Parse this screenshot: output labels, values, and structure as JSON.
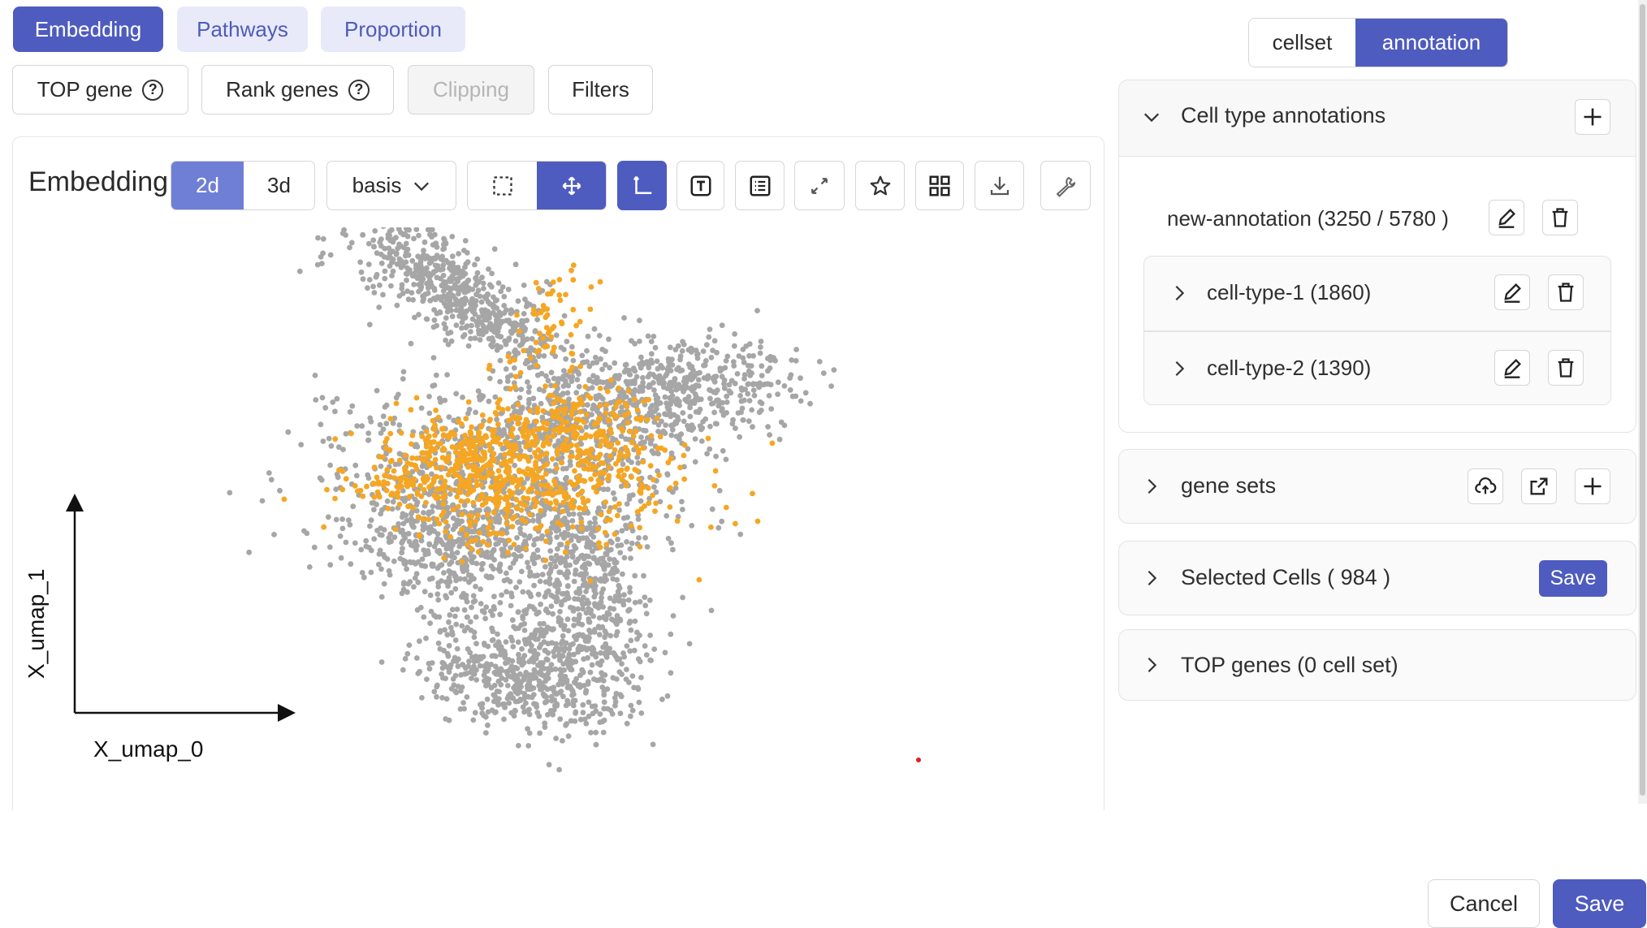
{
  "top_tabs": [
    {
      "label": "Embedding",
      "active": true
    },
    {
      "label": "Pathways",
      "active": false
    },
    {
      "label": "Proportion",
      "active": false
    }
  ],
  "toolbar": {
    "top_gene": "TOP gene",
    "rank_genes": "Rank genes",
    "clipping": "Clipping",
    "filters": "Filters"
  },
  "embedding": {
    "title": "Embedding",
    "dim_2d": "2d",
    "dim_3d": "3d",
    "active_dim": "2d",
    "basis": "basis",
    "tool_icons": [
      "lasso-select-icon",
      "pan-move-icon",
      "axes-icon",
      "text-label-icon",
      "legend-list-icon",
      "fullscreen-icon",
      "star-icon",
      "grid-icon",
      "download-icon",
      "wrench-icon"
    ]
  },
  "chart_data": {
    "type": "scatter",
    "xlabel": "X_umap_0",
    "ylabel": "X_umap_1",
    "grid": false,
    "colors": {
      "unselected": "#a6a6a6",
      "selected": "#f5a623"
    },
    "series": [
      {
        "name": "",
        "color": "#a6a6a6",
        "points_shown": "approx 5780 cells (unselected)"
      },
      {
        "name": "",
        "color": "#f5a623",
        "points_shown": "984 selected cells"
      }
    ]
  },
  "right": {
    "view_toggle": {
      "cellset": "cellset",
      "annotation": "annotation",
      "active": "annotation"
    },
    "cell_type_annotations": {
      "title": "Cell type annotations",
      "annotation_name": "new-annotation (3250 / 5780 )",
      "children": [
        {
          "label": "cell-type-1 (1860)"
        },
        {
          "label": "cell-type-2 (1390)"
        }
      ]
    },
    "gene_sets": {
      "title": "gene sets"
    },
    "selected_cells": {
      "title": "Selected Cells ( 984 )",
      "save": "Save"
    },
    "top_genes": {
      "title": "TOP genes (0 cell set)"
    }
  },
  "footer": {
    "cancel": "Cancel",
    "save": "Save"
  },
  "accent": "#4e5bbf"
}
